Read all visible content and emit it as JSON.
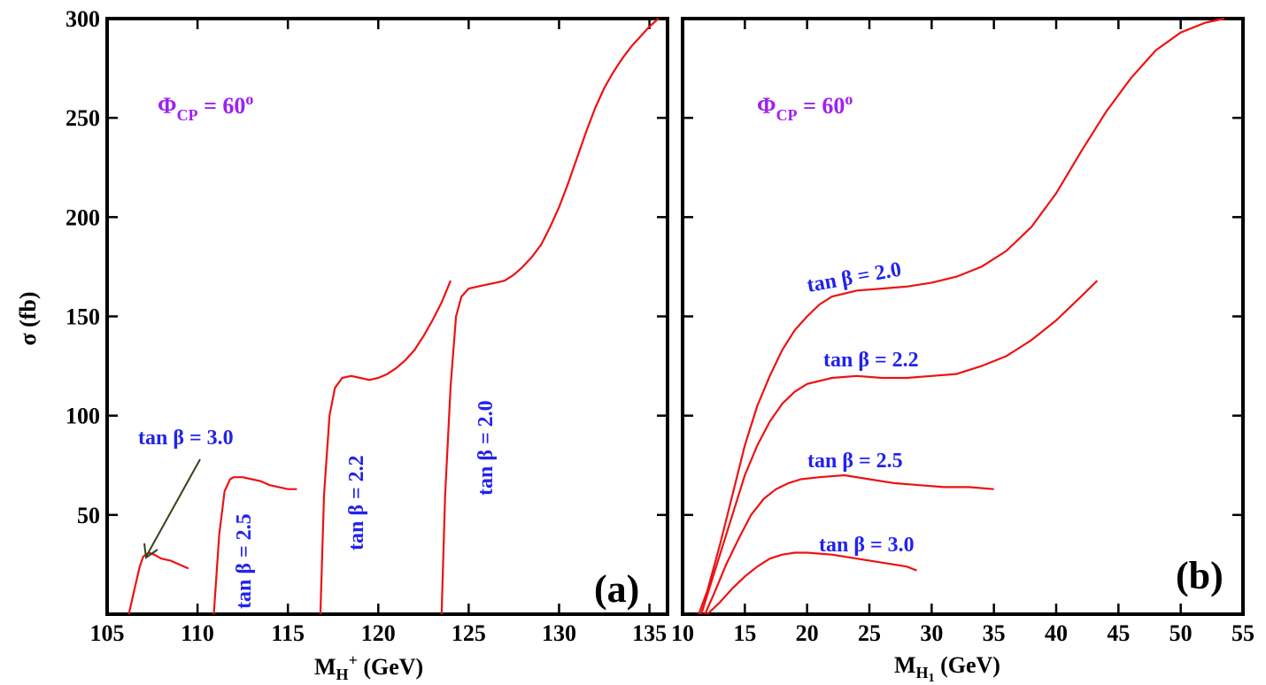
{
  "chart_data": [
    {
      "type": "line",
      "panel_tag": "(a)",
      "annotation": "ΦCP = 60o",
      "annotation_parts": {
        "base": "Φ",
        "sub": "CP",
        "mid": " = 60",
        "sup": "o"
      },
      "xlabel": "MH+ (GeV)",
      "xlabel_parts": {
        "base": "M",
        "sub": "H",
        "sup": "+",
        "rest": " (GeV)"
      },
      "ylabel": "σ (fb)",
      "xlim": [
        105,
        136
      ],
      "ylim": [
        0,
        300
      ],
      "xticks": [
        105,
        110,
        115,
        120,
        125,
        130,
        135
      ],
      "yticks": [
        50,
        100,
        150,
        200,
        250,
        300
      ],
      "grid": false,
      "series": [
        {
          "name": "tan β = 3.0",
          "x": [
            106.2,
            106.5,
            106.8,
            107.0,
            107.3,
            107.6,
            108.0,
            108.5,
            109.0,
            109.5
          ],
          "y": [
            0,
            12,
            24,
            29,
            31,
            30,
            28,
            27,
            25,
            23
          ]
        },
        {
          "name": "tan β = 2.5",
          "x": [
            110.9,
            111.2,
            111.5,
            111.8,
            112.0,
            112.5,
            113.0,
            113.5,
            114.0,
            114.5,
            115.0,
            115.5
          ],
          "y": [
            0,
            40,
            62,
            68,
            69,
            69,
            68,
            67,
            65,
            64,
            63,
            63
          ]
        },
        {
          "name": "tan β = 2.2",
          "x": [
            116.8,
            117.0,
            117.3,
            117.6,
            118.0,
            118.5,
            119.0,
            119.5,
            120.0,
            120.5,
            121.0,
            121.5,
            122.0,
            122.5,
            123.0,
            123.5,
            124.0
          ],
          "y": [
            0,
            60,
            100,
            114,
            119,
            120,
            119,
            118,
            119,
            121,
            124,
            128,
            133,
            140,
            148,
            157,
            168
          ]
        },
        {
          "name": "tan β = 2.0",
          "x": [
            123.5,
            123.7,
            124.0,
            124.3,
            124.6,
            125.0,
            125.5,
            126.0,
            126.5,
            127.0,
            127.5,
            128.0,
            128.5,
            129.0,
            129.5,
            130.0,
            130.5,
            131.0,
            131.5,
            132.0,
            132.5,
            133.0,
            133.5,
            134.0,
            134.5,
            135.0,
            135.5
          ],
          "y": [
            0,
            60,
            115,
            150,
            160,
            164,
            165,
            166,
            167,
            168,
            171,
            175,
            180,
            186,
            195,
            205,
            217,
            230,
            243,
            255,
            265,
            273,
            280,
            286,
            291,
            296,
            300
          ]
        }
      ],
      "curve_labels": [
        "tan β = 3.0",
        "tan β = 2.5",
        "tan β = 2.2",
        "tan β = 2.0"
      ]
    },
    {
      "type": "line",
      "panel_tag": "(b)",
      "annotation": "ΦCP = 60o",
      "annotation_parts": {
        "base": "Φ",
        "sub": "CP",
        "mid": " = 60",
        "sup": "o"
      },
      "xlabel": "MH1 (GeV)",
      "xlabel_parts": {
        "base": "M",
        "sub": "H",
        "subsub": "1",
        "rest": " (GeV)"
      },
      "ylabel": "",
      "xlim": [
        10,
        55
      ],
      "ylim": [
        0,
        300
      ],
      "xticks": [
        10,
        15,
        20,
        25,
        30,
        35,
        40,
        45,
        50,
        55
      ],
      "yticks": [
        50,
        100,
        150,
        200,
        250,
        300
      ],
      "grid": false,
      "series": [
        {
          "name": "tan β = 2.0",
          "x": [
            11.3,
            12,
            13,
            14,
            15,
            16,
            17,
            18,
            19,
            20,
            21,
            22,
            24,
            26,
            28,
            30,
            32,
            34,
            36,
            38,
            40,
            42,
            44,
            46,
            48,
            50,
            52,
            53.5
          ],
          "y": [
            0,
            12,
            35,
            60,
            85,
            105,
            120,
            133,
            143,
            150,
            156,
            160,
            163,
            164,
            165,
            167,
            170,
            175,
            183,
            195,
            212,
            233,
            253,
            270,
            284,
            293,
            298,
            300
          ]
        },
        {
          "name": "tan β = 2.2",
          "x": [
            11.5,
            12,
            13,
            14,
            15,
            16,
            17,
            18,
            19,
            20,
            22,
            24,
            26,
            28,
            30,
            32,
            34,
            36,
            38,
            40,
            42,
            43.3
          ],
          "y": [
            0,
            10,
            30,
            50,
            70,
            85,
            97,
            106,
            112,
            116,
            119,
            120,
            119,
            119,
            120,
            121,
            125,
            130,
            138,
            148,
            160,
            168
          ]
        },
        {
          "name": "tan β = 2.5",
          "x": [
            11.8,
            12.5,
            13.5,
            14.5,
            15.5,
            16.5,
            17.5,
            18.5,
            19.5,
            21,
            23,
            25,
            27,
            29,
            31,
            33,
            35
          ],
          "y": [
            0,
            10,
            25,
            38,
            50,
            58,
            63,
            66,
            68,
            69,
            70,
            68,
            66,
            65,
            64,
            64,
            63
          ]
        },
        {
          "name": "tan β = 3.0",
          "x": [
            12,
            13,
            14,
            15,
            16,
            17,
            18,
            19,
            20,
            22,
            24,
            26,
            28,
            28.8
          ],
          "y": [
            0,
            6,
            13,
            19,
            24,
            28,
            30,
            31,
            31,
            30,
            28,
            26,
            24,
            22
          ]
        }
      ],
      "curve_labels": [
        "tan β = 2.0",
        "tan β = 2.2",
        "tan β = 2.5",
        "tan β = 3.0"
      ]
    }
  ]
}
